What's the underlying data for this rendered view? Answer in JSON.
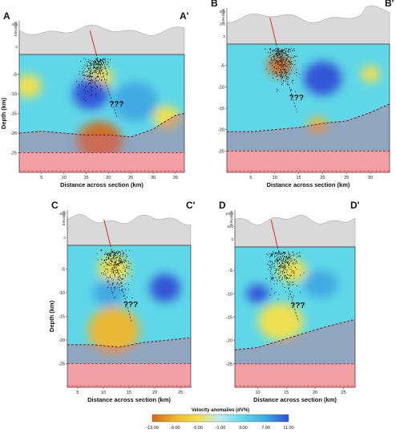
{
  "colors": {
    "neg_strong": "#d2691e",
    "neg_mid": "#f1b52c",
    "neg_weak": "#f5e04a",
    "neutral": "#b9ecf2",
    "pos_weak": "#5fd7e8",
    "pos_mid": "#3fa7e2",
    "pos_strong": "#2f4fd6",
    "moho_fill": "#c76a8e",
    "lower_fill": "#f3a0a5",
    "topo_fill": "#d9d9d9",
    "fault": "#c0392b"
  },
  "chart_data": [
    {
      "type": "heatmap",
      "panel": "A",
      "label_left": "A",
      "label_right": "A'",
      "xlabel": "Distance across section (km)",
      "ylabel": "Depth (km)",
      "elevation_label": "Elevation",
      "elevation_ticks": [
        "400",
        "0"
      ],
      "xlim": [
        0,
        37
      ],
      "ylim": [
        0,
        30
      ],
      "x_ticks": [
        5,
        10,
        15,
        20,
        25,
        30,
        35
      ],
      "y_ticks": [
        -5,
        -10,
        -15,
        -20,
        -25
      ],
      "unknown_label": "???",
      "moho_depth": [
        [
          0,
          20
        ],
        [
          5,
          19.5
        ],
        [
          10,
          20
        ],
        [
          15,
          20.5
        ],
        [
          20,
          20.5
        ],
        [
          25,
          21
        ],
        [
          30,
          19
        ],
        [
          32,
          17.5
        ],
        [
          35,
          15.5
        ],
        [
          37,
          15
        ]
      ],
      "anomalies": [
        {
          "x": 18,
          "y": 22,
          "r": 5,
          "value": -11
        },
        {
          "x": 18,
          "y": 6,
          "r": 3,
          "value": -6
        },
        {
          "x": 2,
          "y": 8,
          "r": 3,
          "value": -4
        },
        {
          "x": 16,
          "y": 10,
          "r": 4,
          "value": 10
        },
        {
          "x": 26,
          "y": 12,
          "r": 5,
          "value": 8
        },
        {
          "x": 33,
          "y": 16,
          "r": 3,
          "value": -6
        }
      ]
    },
    {
      "type": "heatmap",
      "panel": "B",
      "label_left": "B",
      "label_right": "B'",
      "xlabel": "Distance across section (km)",
      "ylabel": "",
      "elevation_label": "Elevation",
      "elevation_ticks": [
        "300",
        "200",
        "0"
      ],
      "xlim": [
        0,
        34
      ],
      "ylim": [
        0,
        30
      ],
      "x_ticks": [
        5,
        10,
        15,
        20,
        25,
        30
      ],
      "y_ticks": [
        -5,
        -10,
        -15,
        -20,
        -25
      ],
      "unknown_label": "???",
      "moho_depth": [
        [
          0,
          20.5
        ],
        [
          5,
          20.5
        ],
        [
          10,
          20
        ],
        [
          15,
          19.5
        ],
        [
          20,
          18.5
        ],
        [
          25,
          18
        ],
        [
          30,
          16
        ],
        [
          34,
          14
        ]
      ],
      "anomalies": [
        {
          "x": 11,
          "y": 5,
          "r": 2.5,
          "value": -11
        },
        {
          "x": 20,
          "y": 8,
          "r": 4,
          "value": 11
        },
        {
          "x": 19,
          "y": 19,
          "r": 2,
          "value": -8
        },
        {
          "x": 30,
          "y": 7,
          "r": 2,
          "value": -3
        }
      ]
    },
    {
      "type": "heatmap",
      "panel": "C",
      "label_left": "C",
      "label_right": "C'",
      "xlabel": "Distance across section (km)",
      "ylabel": "Depth (km)",
      "elevation_label": "Elevation",
      "elevation_ticks": [
        "600",
        "0"
      ],
      "xlim": [
        3,
        27
      ],
      "ylim": [
        0,
        30
      ],
      "x_ticks": [
        5,
        10,
        15,
        20,
        25
      ],
      "y_ticks": [
        -5,
        -10,
        -15,
        -20,
        -25
      ],
      "unknown_label": "???",
      "moho_depth": [
        [
          3,
          21
        ],
        [
          8,
          21
        ],
        [
          13,
          21.5
        ],
        [
          18,
          20.5
        ],
        [
          23,
          20
        ],
        [
          27,
          19.5
        ]
      ],
      "anomalies": [
        {
          "x": 12,
          "y": 18,
          "r": 5,
          "value": -7
        },
        {
          "x": 12,
          "y": 5,
          "r": 3,
          "value": -6
        },
        {
          "x": 22,
          "y": 9,
          "r": 3,
          "value": 10
        },
        {
          "x": 11,
          "y": 10,
          "r": 3,
          "value": 8
        }
      ]
    },
    {
      "type": "heatmap",
      "panel": "D",
      "label_left": "D",
      "label_right": "D'",
      "xlabel": "Distance across section (km)",
      "ylabel": "",
      "elevation_label": "Elevation",
      "elevation_ticks": [
        "1000",
        "500",
        "0"
      ],
      "xlim": [
        6,
        27
      ],
      "ylim": [
        0,
        30
      ],
      "x_ticks": [
        10,
        15,
        20,
        25
      ],
      "y_ticks": [
        -5,
        -10,
        -15,
        -20,
        -25
      ],
      "unknown_label": "???",
      "moho_depth": [
        [
          6,
          22
        ],
        [
          10,
          21.5
        ],
        [
          14,
          20
        ],
        [
          18,
          18.5
        ],
        [
          22,
          17
        ],
        [
          27,
          15.5
        ]
      ],
      "anomalies": [
        {
          "x": 14,
          "y": 16,
          "r": 4,
          "value": -6
        },
        {
          "x": 10,
          "y": 10,
          "r": 2,
          "value": 10
        },
        {
          "x": 21,
          "y": 8,
          "r": 3,
          "value": 8
        },
        {
          "x": 16,
          "y": 5,
          "r": 2.5,
          "value": -5
        }
      ]
    }
  ],
  "legend": {
    "title": "Velocity anomalies (dV%)",
    "ticks": [
      "-13.00",
      "-9.00",
      "-5.00",
      "-1.00",
      "3.00",
      "7.00",
      "11.00"
    ]
  }
}
